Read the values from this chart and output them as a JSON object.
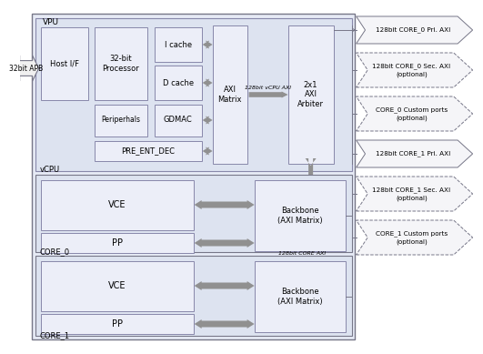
{
  "bg_color": "#ffffff",
  "box_fill_light": "#e8ecf5",
  "box_fill_med": "#d8dff0",
  "box_edge": "#888899",
  "arrow_fill": "#999999",
  "vpu_label": "VPU",
  "vcpu_label": "vCPU",
  "core0_label": "CORE_0",
  "core1_label": "CORE_1",
  "apb_label": "32bit APB",
  "axi_matrix_label": "AXI\nMatrix",
  "arbiter_label": "2x1\nAXI\nArbiter",
  "vcpu_axi_label": "128bit vCPU AXI",
  "core_axi_label": "128bit CORE AXI",
  "right_arrows": [
    {
      "label1": "128bit CORE_0 Pri. AXI",
      "label2": "",
      "dashed": false
    },
    {
      "label1": "128bit CORE_0 Sec. AXI",
      "label2": "(optional)",
      "dashed": true
    },
    {
      "label1": "CORE_0 Custom ports",
      "label2": "(optional)",
      "dashed": true
    },
    {
      "label1": "128bit CORE_1 Pri. AXI",
      "label2": "",
      "dashed": false
    },
    {
      "label1": "128bit CORE_1 Sec. AXI",
      "label2": "(optional)",
      "dashed": true
    },
    {
      "label1": "CORE_1 Custom ports",
      "label2": "(optional)",
      "dashed": true
    }
  ]
}
